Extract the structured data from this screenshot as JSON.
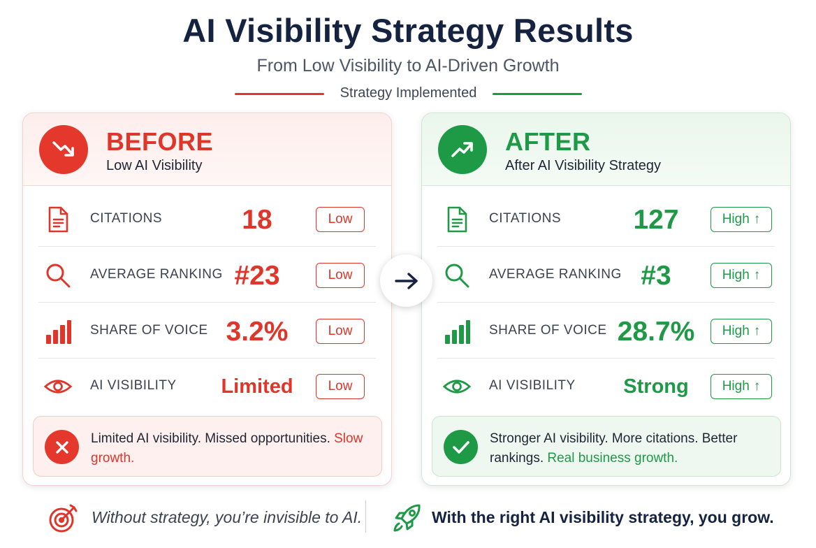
{
  "header": {
    "title": "AI Visibility Strategy Results",
    "subtitle": "From Low Visibility to AI-Driven Growth",
    "divider_label": "Strategy Implemented"
  },
  "colors": {
    "before_accent": "#e0352b",
    "after_accent": "#1e9a46",
    "title": "#152340"
  },
  "before": {
    "title": "BEFORE",
    "subtitle": "Low AI Visibility",
    "header_icon": "trend-down-icon",
    "metrics": [
      {
        "label": "CITATIONS",
        "value": "18",
        "badge": "Low",
        "icon": "document-icon"
      },
      {
        "label": "AVERAGE RANKING",
        "value": "#23",
        "badge": "Low",
        "icon": "search-icon"
      },
      {
        "label": "SHARE OF VOICE",
        "value": "3.2%",
        "badge": "Low",
        "icon": "bar-chart-icon"
      },
      {
        "label": "AI VISIBILITY",
        "value": "Limited",
        "badge": "Low",
        "icon": "eye-icon"
      }
    ],
    "summary": {
      "text": "Limited AI visibility. Missed opportunities. ",
      "highlight": "Slow growth.",
      "icon": "x-circle-icon"
    }
  },
  "after": {
    "title": "AFTER",
    "subtitle": "After AI Visibility Strategy",
    "header_icon": "trend-up-icon",
    "metrics": [
      {
        "label": "CITATIONS",
        "value": "127",
        "badge": "High",
        "icon": "document-icon"
      },
      {
        "label": "AVERAGE RANKING",
        "value": "#3",
        "badge": "High",
        "icon": "search-icon"
      },
      {
        "label": "SHARE OF VOICE",
        "value": "28.7%",
        "badge": "High",
        "icon": "bar-chart-icon"
      },
      {
        "label": "AI VISIBILITY",
        "value": "Strong",
        "badge": "High",
        "icon": "eye-icon"
      }
    ],
    "summary": {
      "text": "Stronger AI visibility. More citations. Better rankings. ",
      "highlight": "Real business growth.",
      "icon": "check-circle-icon"
    }
  },
  "center_icon": "arrow-right-icon",
  "footer": {
    "left_text": "Without strategy, you’re invisible to AI.",
    "left_icon": "target-icon",
    "right_text": "With the right AI visibility strategy, you grow.",
    "right_icon": "rocket-icon"
  }
}
